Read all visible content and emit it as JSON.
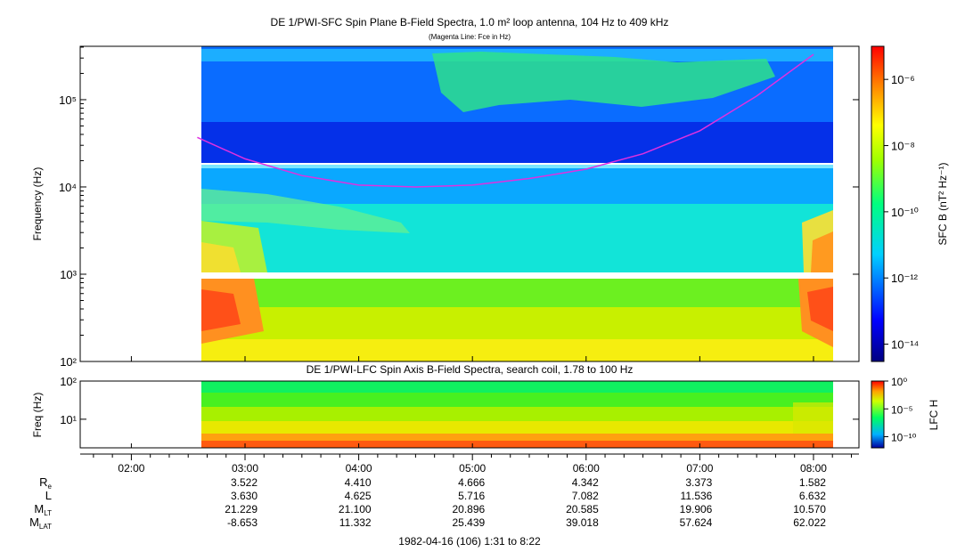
{
  "chart_data": [
    {
      "type": "heatmap",
      "title": "DE 1/PWI-SFC  Spin Plane B-Field Spectra, 1.0 m² loop antenna, 104 Hz to 409 kHz",
      "subtitle": "(Magenta Line: Fce in Hz)",
      "ylabel": "Frequency (Hz)",
      "yscale": "log",
      "ylim": [
        100,
        409000
      ],
      "ytick_labels": [
        "10²",
        "10³",
        "10⁴",
        "10⁵"
      ],
      "ytick_values": [
        100,
        1000,
        10000,
        100000
      ],
      "data_time_range_hours": [
        2.58,
        8.1
      ],
      "colorbar": {
        "label": "SFC B (nT² Hz⁻¹)",
        "scale": "log",
        "range": [
          3e-15,
          1e-05
        ],
        "tick_labels": [
          "10⁻⁶",
          "10⁻⁸",
          "10⁻¹⁰",
          "10⁻¹²",
          "10⁻¹⁴"
        ],
        "tick_values": [
          1e-06,
          1e-08,
          1e-10,
          1e-12,
          1e-14
        ]
      },
      "fce_line": {
        "color": "#e030e0",
        "time_hours": [
          2.58,
          3.0,
          3.5,
          4.0,
          4.5,
          5.0,
          5.5,
          6.0,
          6.5,
          7.0,
          7.5,
          8.0
        ],
        "fce_hz": [
          37000,
          21000,
          13500,
          10500,
          10000,
          10500,
          12500,
          16000,
          24000,
          44000,
          110000,
          330000
        ]
      }
    },
    {
      "type": "heatmap",
      "title": "DE 1/PWI-LFC  Spin Axis B-Field Spectra, search coil, 1.78 to 100 Hz",
      "ylabel": "Freq (Hz)",
      "yscale": "log",
      "ylim": [
        1.78,
        100
      ],
      "ytick_labels": [
        "10¹",
        "10²"
      ],
      "ytick_values": [
        10,
        100
      ],
      "colorbar": {
        "label": "LFC H",
        "scale": "log",
        "range": [
          1e-12,
          1
        ],
        "tick_labels": [
          "10⁰",
          "10⁻⁵",
          "10⁻¹⁰"
        ],
        "tick_values": [
          1,
          1e-05,
          1e-10
        ]
      }
    }
  ],
  "time_axis": {
    "range_hours": [
      1.55,
      8.4
    ],
    "tick_labels": [
      "02:00",
      "03:00",
      "04:00",
      "05:00",
      "06:00",
      "07:00",
      "08:00"
    ],
    "tick_hours": [
      2,
      3,
      4,
      5,
      6,
      7,
      8
    ]
  },
  "ephemeris": {
    "rows": [
      {
        "label_main": "R",
        "label_sub": "e",
        "values": [
          "3.522",
          "4.410",
          "4.666",
          "4.342",
          "3.373",
          "1.582"
        ]
      },
      {
        "label_main": "L",
        "label_sub": "",
        "values": [
          "3.630",
          "4.625",
          "5.716",
          "7.082",
          "11.536",
          "6.632"
        ]
      },
      {
        "label_main": "M",
        "label_sub": "LT",
        "values": [
          "21.229",
          "21.100",
          "20.896",
          "20.585",
          "19.906",
          "10.570"
        ]
      },
      {
        "label_main": "M",
        "label_sub": "LAT",
        "values": [
          "-8.653",
          "11.332",
          "25.439",
          "39.018",
          "57.624",
          "62.022"
        ]
      }
    ],
    "value_hours": [
      3,
      4,
      5,
      6,
      7,
      8
    ]
  },
  "footer": "1982-04-16 (106) 1:31 to 8:22"
}
